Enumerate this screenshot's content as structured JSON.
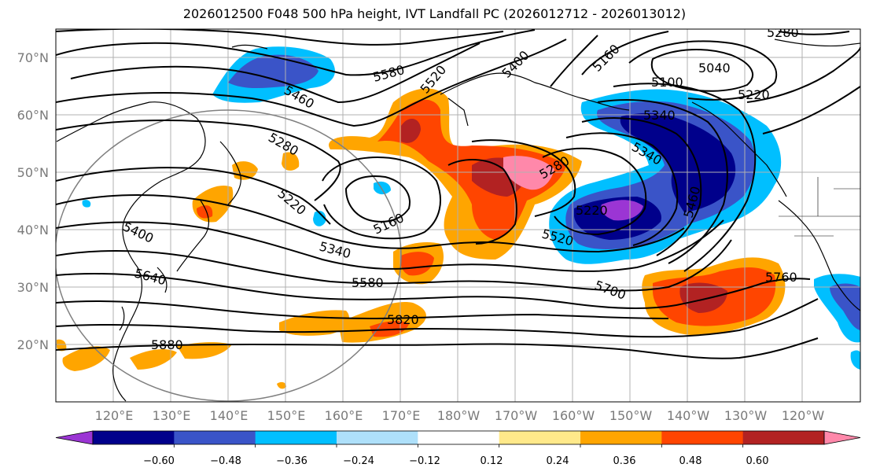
{
  "title": "2026012500 F048 500 hPa height, IVT Landfall PC (2026012712 - 2026013012)",
  "lat_labels": [
    "70°N",
    "60°N",
    "50°N",
    "40°N",
    "30°N",
    "20°N"
  ],
  "lon_labels": [
    "120°E",
    "130°E",
    "140°E",
    "150°E",
    "160°E",
    "170°E",
    "180°W",
    "170°W",
    "160°W",
    "150°W",
    "140°W",
    "130°W",
    "120°W"
  ],
  "contour_labels": [
    "5280",
    "5340",
    "5580",
    "5520",
    "5400",
    "5160",
    "5100",
    "5040",
    "5220",
    "5460",
    "5280",
    "5340",
    "5280",
    "5220",
    "5160",
    "5220",
    "5400",
    "5340",
    "5460",
    "5520",
    "5640",
    "5580",
    "5700",
    "5760",
    "5820",
    "5880"
  ],
  "colorbar": {
    "colors": [
      "#9b35d4",
      "#00008b",
      "#3a54c8",
      "#00bfff",
      "#aee0fa",
      "#ffffff",
      "#ffe98a",
      "#ffa500",
      "#ff4500",
      "#b22222",
      "#ff88aa"
    ],
    "tick_labels": [
      "−0.60",
      "−0.48",
      "−0.36",
      "−0.24",
      "−0.12",
      "0.12",
      "0.24",
      "0.36",
      "0.48",
      "0.60"
    ]
  }
}
